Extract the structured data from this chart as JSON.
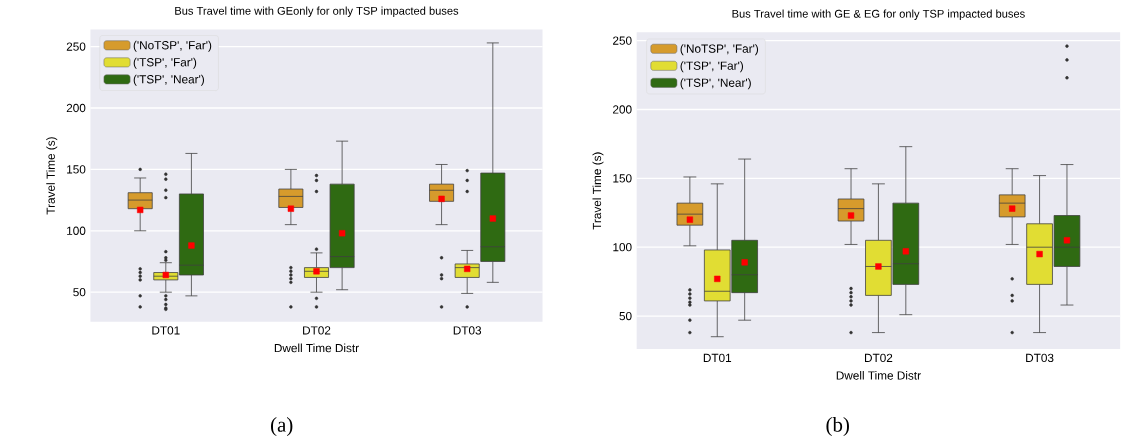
{
  "chart_data": [
    {
      "type": "box",
      "title": "Bus Travel time with GEonly for only TSP impacted buses",
      "xlabel": "Dwell Time Distr",
      "ylabel": "Travel Time (s)",
      "categories": [
        "DT01",
        "DT02",
        "DT03"
      ],
      "series": [
        {
          "name": "('NoTSP', 'Far')",
          "color": "#d69b2c",
          "boxes": [
            {
              "low": 100,
              "q1": 118,
              "median": 125,
              "q3": 131,
              "high": 143,
              "mean": 117,
              "outliers": [
                150,
                69,
                66,
                63,
                60,
                47,
                38
              ]
            },
            {
              "low": 105,
              "q1": 119,
              "median": 128,
              "q3": 134,
              "high": 150,
              "mean": 118,
              "outliers": [
                70,
                67,
                64,
                61,
                58,
                38
              ]
            },
            {
              "low": 105,
              "q1": 124,
              "median": 133,
              "q3": 138,
              "high": 154,
              "mean": 126,
              "outliers": [
                78,
                64,
                61,
                38
              ]
            }
          ]
        },
        {
          "name": "('TSP', 'Far')",
          "color": "#e1dd33",
          "boxes": [
            {
              "low": 50,
              "q1": 60,
              "median": 63,
              "q3": 66,
              "high": 74,
              "mean": 64,
              "outliers": [
                146,
                142,
                133,
                127,
                83,
                78,
                76,
                47,
                44,
                40,
                37,
                36
              ]
            },
            {
              "low": 50,
              "q1": 62,
              "median": 67,
              "q3": 70,
              "high": 82,
              "mean": 67,
              "outliers": [
                145,
                141,
                132,
                85,
                45,
                38
              ]
            },
            {
              "low": 49,
              "q1": 62,
              "median": 70,
              "q3": 73,
              "high": 84,
              "mean": 69,
              "outliers": [
                149,
                141,
                132,
                38
              ]
            }
          ]
        },
        {
          "name": "('TSP', 'Near')",
          "color": "#2f6a12",
          "boxes": [
            {
              "low": 47,
              "q1": 64,
              "median": 72,
              "q3": 130,
              "high": 163,
              "mean": 88
            },
            {
              "low": 52,
              "q1": 70,
              "median": 79,
              "q3": 138,
              "high": 173,
              "mean": 98
            },
            {
              "low": 58,
              "q1": 75,
              "median": 87,
              "q3": 147,
              "high": 253,
              "mean": 110
            }
          ]
        }
      ],
      "ylim": [
        26,
        264
      ],
      "yticks": [
        50,
        100,
        150,
        200,
        250
      ],
      "grid": "y",
      "legend": "top left",
      "annotations": [
        "(a)"
      ]
    },
    {
      "type": "box",
      "title": "Bus Travel time with GE & EG for only TSP impacted buses",
      "xlabel": "Dwell Time Distr",
      "ylabel": "Travel Time (s)",
      "categories": [
        "DT01",
        "DT02",
        "DT03"
      ],
      "series": [
        {
          "name": "('NoTSP', 'Far')",
          "color": "#d69b2c",
          "boxes": [
            {
              "low": 101,
              "q1": 116,
              "median": 124,
              "q3": 132,
              "high": 151,
              "mean": 120,
              "outliers": [
                69,
                66,
                63,
                60,
                58,
                47,
                38
              ]
            },
            {
              "low": 102,
              "q1": 119,
              "median": 128,
              "q3": 135,
              "high": 157,
              "mean": 123,
              "outliers": [
                70,
                67,
                64,
                61,
                58,
                38
              ]
            },
            {
              "low": 102,
              "q1": 122,
              "median": 132,
              "q3": 138,
              "high": 157,
              "mean": 128,
              "outliers": [
                77,
                65,
                61,
                38
              ]
            }
          ]
        },
        {
          "name": "('TSP', 'Far')",
          "color": "#e1dd33",
          "boxes": [
            {
              "low": 35,
              "q1": 61,
              "median": 68,
              "q3": 98,
              "high": 146,
              "mean": 77
            },
            {
              "low": 38,
              "q1": 65,
              "median": 86,
              "q3": 105,
              "high": 146,
              "mean": 86
            },
            {
              "low": 38,
              "q1": 73,
              "median": 100,
              "q3": 117,
              "high": 152,
              "mean": 95
            }
          ]
        },
        {
          "name": "('TSP', 'Near')",
          "color": "#2f6a12",
          "boxes": [
            {
              "low": 47,
              "q1": 67,
              "median": 80,
              "q3": 105,
              "high": 164,
              "mean": 89
            },
            {
              "low": 51,
              "q1": 73,
              "median": 88,
              "q3": 132,
              "high": 173,
              "mean": 97
            },
            {
              "low": 58,
              "q1": 86,
              "median": 100,
              "q3": 123,
              "high": 160,
              "mean": 105,
              "outliers": [
                246,
                236,
                223
              ]
            }
          ]
        }
      ],
      "ylim": [
        26,
        256
      ],
      "yticks": [
        50,
        100,
        150,
        200,
        250
      ],
      "grid": "y",
      "legend": "top left",
      "annotations": [
        "(b)"
      ]
    }
  ]
}
